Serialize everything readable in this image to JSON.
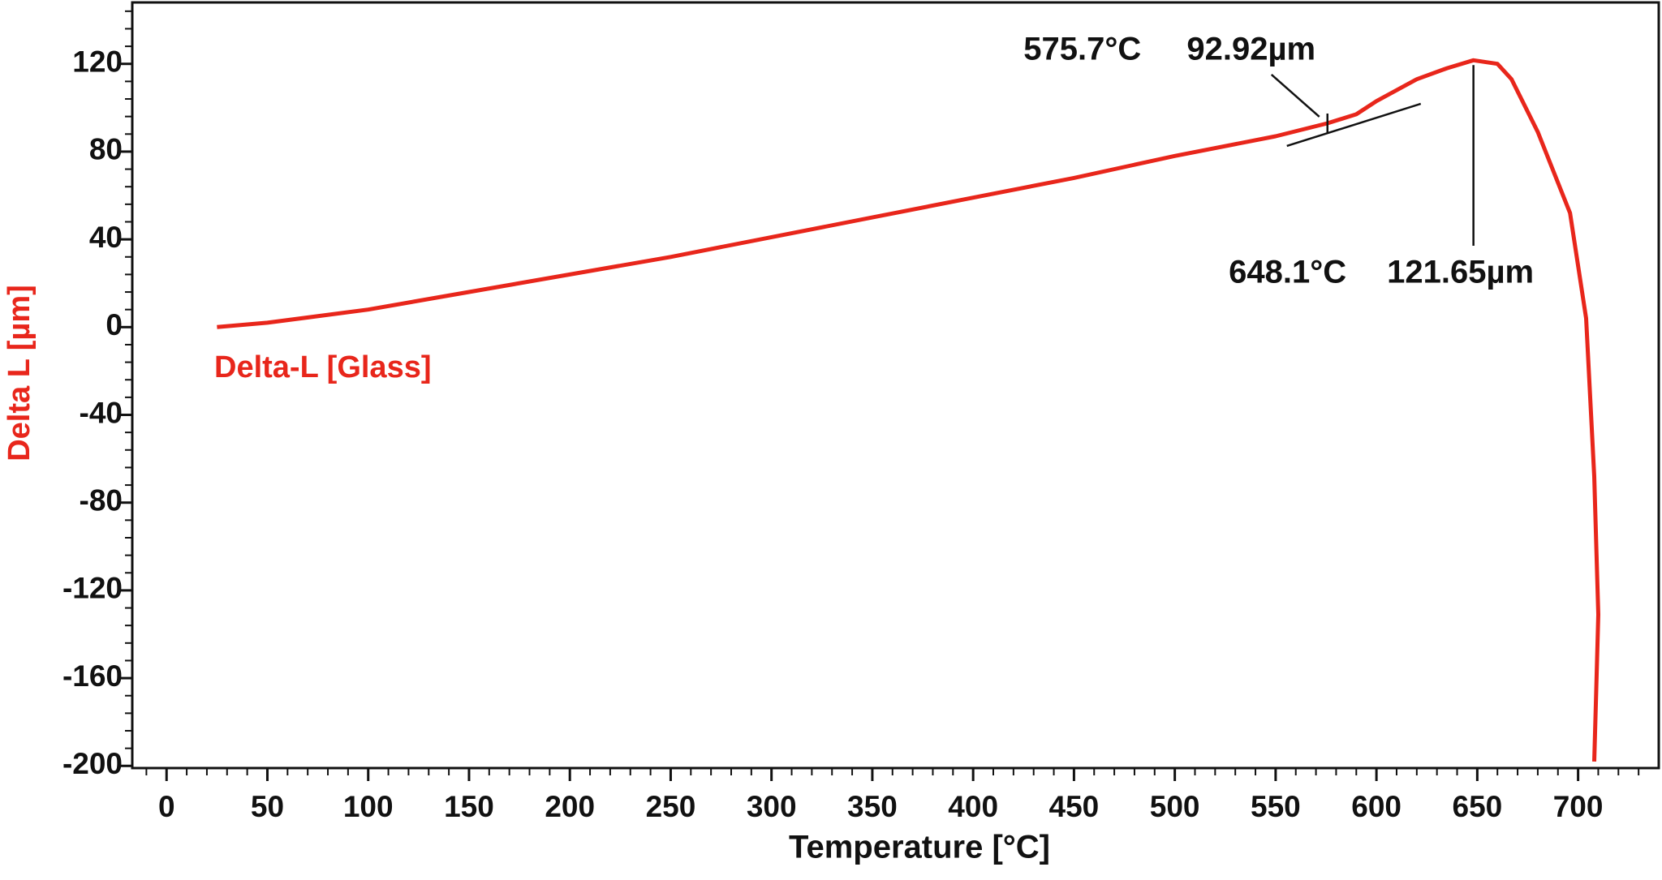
{
  "chart_data": {
    "type": "line",
    "x_label": "Temperature [°C]",
    "y_label": "Delta L [µm]",
    "xlim": [
      -17,
      740
    ],
    "ylim": [
      -201,
      148
    ],
    "xticks": [
      0,
      50,
      100,
      150,
      200,
      250,
      300,
      350,
      400,
      450,
      500,
      550,
      600,
      650,
      700
    ],
    "yticks": [
      120,
      80,
      40,
      0,
      -40,
      -80,
      -120,
      -160,
      -200
    ],
    "xminorticks": [
      -10,
      10,
      20,
      30,
      40,
      60,
      70,
      80,
      90,
      110,
      120,
      130,
      140,
      160,
      170,
      180,
      190,
      210,
      220,
      230,
      240,
      260,
      270,
      280,
      290,
      310,
      320,
      330,
      340,
      360,
      370,
      380,
      390,
      410,
      420,
      430,
      440,
      460,
      470,
      480,
      490,
      510,
      520,
      530,
      540,
      560,
      570,
      580,
      590,
      610,
      620,
      630,
      640,
      660,
      670,
      680,
      690,
      710,
      720,
      730
    ],
    "yminorticks": [
      -192,
      -184,
      -176,
      -168,
      -152,
      -144,
      -136,
      -128,
      -112,
      -104,
      -96,
      -88,
      -72,
      -64,
      -56,
      -48,
      -32,
      -24,
      -16,
      -8,
      8,
      16,
      24,
      32,
      48,
      56,
      64,
      72,
      88,
      96,
      104,
      112,
      128,
      136,
      144
    ],
    "x": [
      25,
      50,
      100,
      150,
      200,
      250,
      300,
      350,
      400,
      450,
      500,
      550,
      575.7,
      590,
      600,
      620,
      635,
      648.1,
      660,
      667,
      680,
      696,
      704,
      708,
      710,
      709,
      708
    ],
    "series": [
      {
        "name": "Delta-L [Glass]",
        "color": "#e8261b",
        "values": [
          0,
          2,
          8,
          16,
          24,
          32,
          41,
          50,
          59,
          68,
          78,
          87,
          92.92,
          97,
          103,
          113,
          118,
          121.65,
          120,
          113,
          89,
          52,
          4,
          -68,
          -131,
          -165,
          -198
        ]
      }
    ],
    "annotations": [
      {
        "x": {
          "value": 575.7,
          "label": "575.7°C"
        },
        "y": {
          "value": 92.92,
          "label": "92.92µm"
        }
      },
      {
        "x": {
          "value": 648.1,
          "label": "648.1°C"
        },
        "y": {
          "value": 121.65,
          "label": "121.65µm"
        }
      }
    ]
  }
}
